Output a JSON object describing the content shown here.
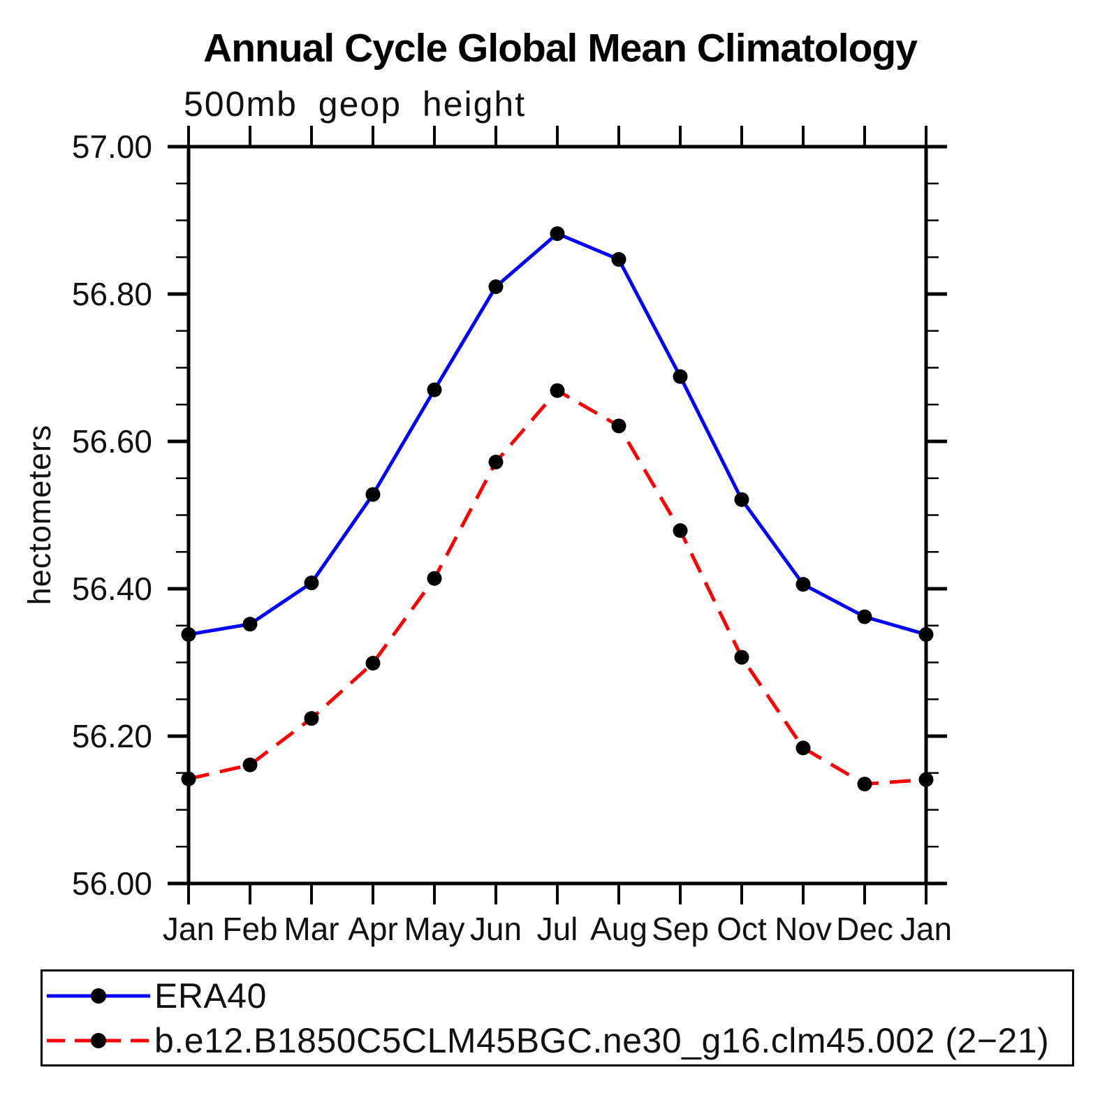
{
  "header": {
    "title": "Annual Cycle Global Mean Climatology",
    "subtitle": "500mb geop height"
  },
  "chart_data": {
    "type": "line",
    "title": "Annual Cycle Global Mean Climatology",
    "subtitle": "500mb geop height",
    "xlabel": "",
    "ylabel": "hectometers",
    "categories": [
      "Jan",
      "Feb",
      "Mar",
      "Apr",
      "May",
      "Jun",
      "Jul",
      "Aug",
      "Sep",
      "Oct",
      "Nov",
      "Dec",
      "Jan"
    ],
    "ylim": [
      56.0,
      57.0
    ],
    "y_major_ticks": [
      56.0,
      56.2,
      56.4,
      56.6,
      56.8,
      57.0
    ],
    "y_tick_labels": [
      "56.00",
      "56.20",
      "56.40",
      "56.60",
      "56.80",
      "57.00"
    ],
    "y_minor_step": 0.05,
    "grid": false,
    "legend_position": "bottom",
    "marker": "filled-circle",
    "marker_color": "#000000",
    "axis_color": "#000000",
    "series": [
      {
        "name": "ERA40",
        "color": "#0000ff",
        "style": "solid",
        "values": [
          56.338,
          56.352,
          56.408,
          56.528,
          56.67,
          56.81,
          56.882,
          56.847,
          56.688,
          56.521,
          56.406,
          56.362,
          56.338
        ]
      },
      {
        "name": "b.e12.B1850C5CLM45BGC.ne30_g16.clm45.002 (2−21)",
        "color": "#ff0000",
        "style": "dashed",
        "values": [
          56.142,
          56.161,
          56.224,
          56.299,
          56.414,
          56.572,
          56.669,
          56.621,
          56.479,
          56.307,
          56.184,
          56.135,
          56.141
        ]
      }
    ]
  }
}
